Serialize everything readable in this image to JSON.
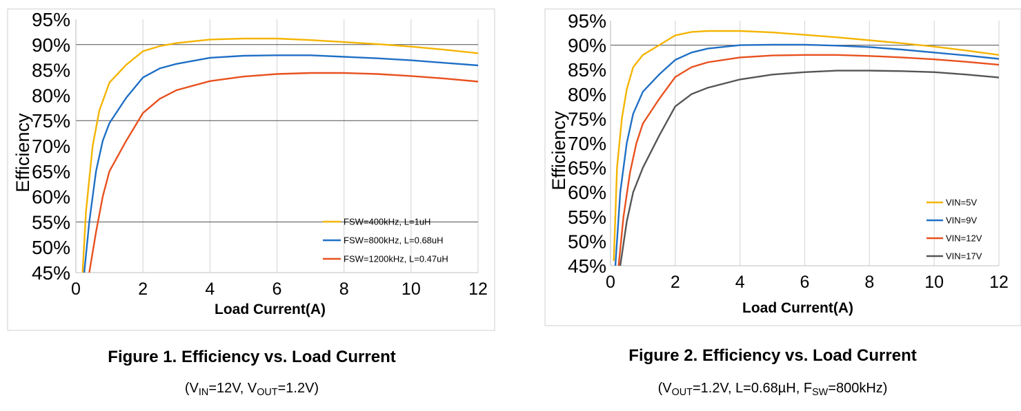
{
  "chart_data": [
    {
      "type": "line",
      "title": "",
      "xlabel": "Load Current(A)",
      "ylabel": "Efficiency",
      "xlim": [
        0,
        12
      ],
      "ylim": [
        45,
        95
      ],
      "x_ticks": [
        "0",
        "2",
        "4",
        "6",
        "8",
        "10",
        "12"
      ],
      "y_ticks": [
        "45%",
        "50%",
        "55%",
        "60%",
        "65%",
        "70%",
        "75%",
        "80%",
        "85%",
        "90%",
        "95%"
      ],
      "grid": "vertical lines every 2 A; horizontal lines at 55%, 75%, 90%",
      "legend_position": "bottom-right",
      "series": [
        {
          "name": "FSW=400kHz, L=1uH",
          "color": "#F4B400",
          "x": [
            0.2,
            0.3,
            0.5,
            0.7,
            1.0,
            1.5,
            2.0,
            2.5,
            3.0,
            4.0,
            5.0,
            6.0,
            7.0,
            8.0,
            9.0,
            10.0,
            11.0,
            12.0
          ],
          "y": [
            45,
            57,
            70,
            77,
            82.5,
            86,
            88.7,
            89.7,
            90.3,
            91,
            91.2,
            91.2,
            90.9,
            90.5,
            90.1,
            89.6,
            89,
            88.3
          ]
        },
        {
          "name": "FSW=800kHz, L=0.68uH",
          "color": "#1F6FC5",
          "x": [
            0.25,
            0.4,
            0.6,
            0.8,
            1.0,
            1.5,
            2.0,
            2.5,
            3.0,
            4.0,
            5.0,
            6.0,
            7.0,
            8.0,
            9.0,
            10.0,
            11.0,
            12.0
          ],
          "y": [
            45,
            55,
            65,
            71,
            74.5,
            79.5,
            83.5,
            85.3,
            86.2,
            87.4,
            87.8,
            87.9,
            87.9,
            87.6,
            87.3,
            86.9,
            86.4,
            85.9
          ]
        },
        {
          "name": "FSW=1200kHz, L=0.47uH",
          "color": "#E8501E",
          "x": [
            0.4,
            0.6,
            0.8,
            1.0,
            1.5,
            2.0,
            2.5,
            3.0,
            4.0,
            5.0,
            6.0,
            7.0,
            8.0,
            9.0,
            10.0,
            11.0,
            12.0
          ],
          "y": [
            45,
            53,
            60,
            65,
            71,
            76.5,
            79.3,
            81,
            82.8,
            83.7,
            84.2,
            84.4,
            84.4,
            84.2,
            83.8,
            83.3,
            82.7
          ]
        }
      ]
    },
    {
      "type": "line",
      "title": "",
      "xlabel": "Load Current(A)",
      "ylabel": "Efficiency",
      "xlim": [
        0,
        12
      ],
      "ylim": [
        45,
        95
      ],
      "x_ticks": [
        "0",
        "2",
        "4",
        "6",
        "8",
        "10",
        "12"
      ],
      "y_ticks": [
        "45%",
        "50%",
        "55%",
        "60%",
        "65%",
        "70%",
        "75%",
        "80%",
        "85%",
        "90%",
        "95%"
      ],
      "grid": "vertical lines every 2 A; horizontal line at 90%",
      "legend_position": "bottom-right",
      "series": [
        {
          "name": "VIN=5V",
          "color": "#F4B400",
          "x": [
            0.1,
            0.2,
            0.35,
            0.5,
            0.7,
            1.0,
            1.5,
            2.0,
            2.5,
            3.0,
            4.0,
            5.0,
            6.0,
            7.0,
            8.0,
            9.0,
            10.0,
            11.0,
            12.0
          ],
          "y": [
            46,
            65,
            75,
            81,
            85.5,
            88,
            90,
            92,
            92.7,
            92.9,
            92.9,
            92.6,
            92.1,
            91.6,
            91,
            90.4,
            89.7,
            88.9,
            88
          ]
        },
        {
          "name": "VIN=9V",
          "color": "#1F6FC5",
          "x": [
            0.15,
            0.3,
            0.5,
            0.7,
            1.0,
            1.5,
            2.0,
            2.5,
            3.0,
            4.0,
            5.0,
            6.0,
            7.0,
            8.0,
            9.0,
            10.0,
            11.0,
            12.0
          ],
          "y": [
            45,
            60,
            70,
            76,
            80.5,
            84,
            87,
            88.5,
            89.3,
            90,
            90.1,
            90.1,
            89.9,
            89.6,
            89.1,
            88.5,
            87.9,
            87.2
          ]
        },
        {
          "name": "VIN=12V",
          "color": "#E8501E",
          "x": [
            0.25,
            0.4,
            0.6,
            0.8,
            1.0,
            1.5,
            2.0,
            2.5,
            3.0,
            4.0,
            5.0,
            6.0,
            7.0,
            8.0,
            9.0,
            10.0,
            11.0,
            12.0
          ],
          "y": [
            45,
            55,
            64,
            70,
            74,
            79,
            83.5,
            85.5,
            86.5,
            87.5,
            87.9,
            88,
            88,
            87.8,
            87.5,
            87.1,
            86.6,
            86
          ]
        },
        {
          "name": "VIN=17V",
          "color": "#555555",
          "x": [
            0.3,
            0.5,
            0.7,
            1.0,
            1.5,
            2.0,
            2.5,
            3.0,
            4.0,
            5.0,
            6.0,
            7.0,
            8.0,
            9.0,
            10.0,
            11.0,
            12.0
          ],
          "y": [
            45,
            54,
            60,
            65,
            71.5,
            77.5,
            80,
            81.3,
            83,
            84,
            84.5,
            84.8,
            84.8,
            84.7,
            84.5,
            84,
            83.4
          ]
        }
      ]
    }
  ],
  "captions": [
    {
      "title": "Figure 1. Efficiency vs. Load Current",
      "sub": {
        "open": "(V",
        "s1": "IN",
        "t1": "=12V, V",
        "s2": "OUT",
        "t2": "=1.2V)"
      }
    },
    {
      "title": "Figure 2. Efficiency vs. Load Current",
      "sub": {
        "open": "(V",
        "s1": "OUT",
        "t1": "=1.2V, L=0.68µH, F",
        "s2": "SW",
        "t2": "=800kHz)"
      }
    }
  ]
}
